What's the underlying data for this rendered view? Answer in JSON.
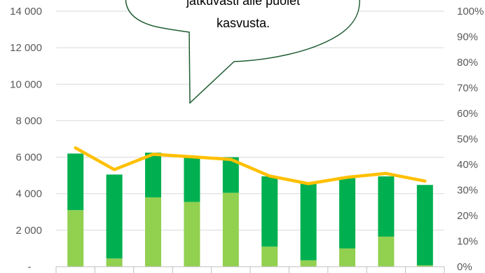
{
  "chart_data": {
    "type": "bar",
    "stacked": true,
    "x": [
      "",
      "",
      "",
      "",
      "",
      "",
      "",
      "",
      "",
      ""
    ],
    "y_left": {
      "range": [
        0,
        14000
      ],
      "tick_labels": [
        "-",
        "2 000",
        "4 000",
        "6 000",
        "8 000",
        "10 000",
        "12 000",
        "14 000"
      ]
    },
    "y_right": {
      "range": [
        0,
        1
      ],
      "tick_labels": [
        "0%",
        "10%",
        "20%",
        "30%",
        "40%",
        "50%",
        "60%",
        "70%",
        "80%",
        "90%",
        "100%"
      ]
    },
    "series": [
      {
        "kind": "bar",
        "color": "#92d050",
        "values": [
          3100,
          450,
          3800,
          3550,
          4050,
          1100,
          350,
          1000,
          1650,
          80
        ]
      },
      {
        "kind": "bar",
        "color": "#00b050",
        "values": [
          3100,
          4600,
          2450,
          2500,
          1950,
          3850,
          4200,
          3850,
          3300,
          4400
        ]
      },
      {
        "kind": "line",
        "axis": "right",
        "color": "#ffc000",
        "values": [
          0.465,
          0.38,
          0.44,
          0.43,
          0.42,
          0.355,
          0.325,
          0.35,
          0.365,
          0.335
        ]
      }
    ],
    "grid": true,
    "legend": "none"
  },
  "callout": {
    "lines": [
      "jatkuvasti alle puolet",
      "kasvusta."
    ]
  }
}
